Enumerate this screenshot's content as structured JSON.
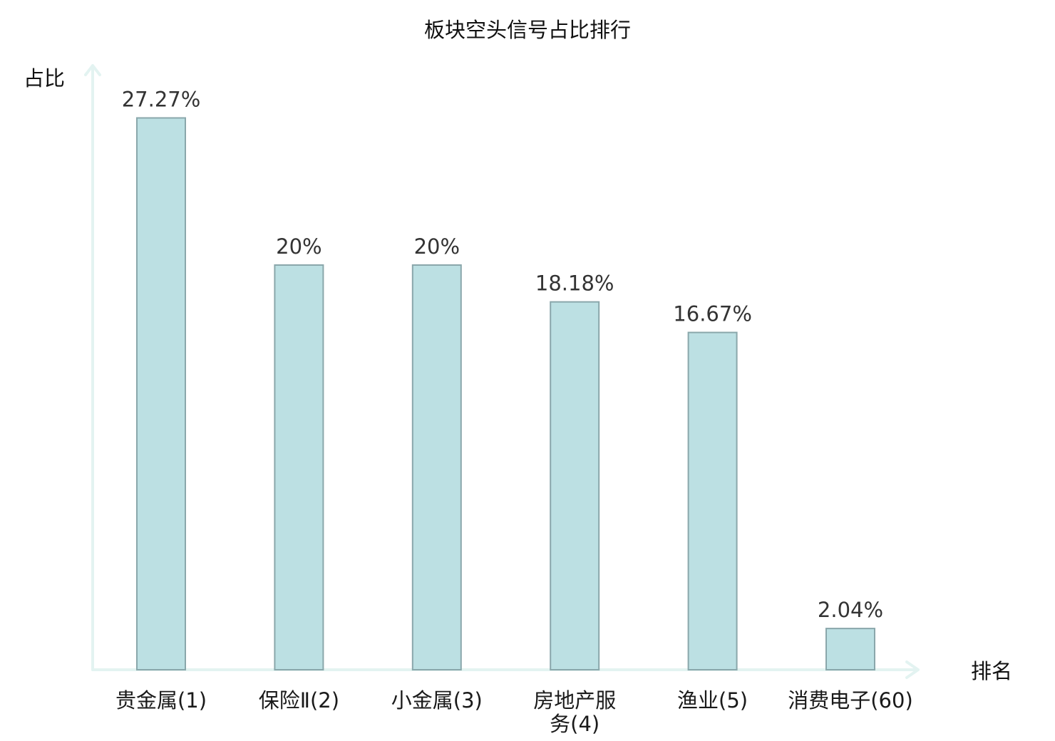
{
  "chart_data": {
    "type": "bar",
    "title": "板块空头信号占比排行",
    "ylabel": "占比",
    "xlabel": "排名",
    "categories": [
      "贵金属(1)",
      "保险Ⅱ(2)",
      "小金属(3)",
      "房地产服务(4)",
      "渔业(5)",
      "消费电子(60)"
    ],
    "category_lines": [
      [
        "贵金属(1)"
      ],
      [
        "保险Ⅱ(2)"
      ],
      [
        "小金属(3)"
      ],
      [
        "房地产服",
        "务(4)"
      ],
      [
        "渔业(5)"
      ],
      [
        "消费电子(60)"
      ]
    ],
    "category_colors": [
      "#111111",
      "#111111",
      "#111111",
      "#111111",
      "#111111",
      "#e0141e"
    ],
    "values": [
      27.27,
      20,
      20,
      18.18,
      16.67,
      2.04
    ],
    "value_labels": [
      "27.27%",
      "20%",
      "20%",
      "18.18%",
      "16.67%",
      "2.04%"
    ],
    "ylim": [
      0,
      30
    ],
    "grid": false,
    "colors": {
      "bar_fill": "#bce0e3",
      "bar_stroke": "#8aa7ab",
      "axis": "#e3f3f1",
      "highlight": "#e0141e"
    }
  }
}
